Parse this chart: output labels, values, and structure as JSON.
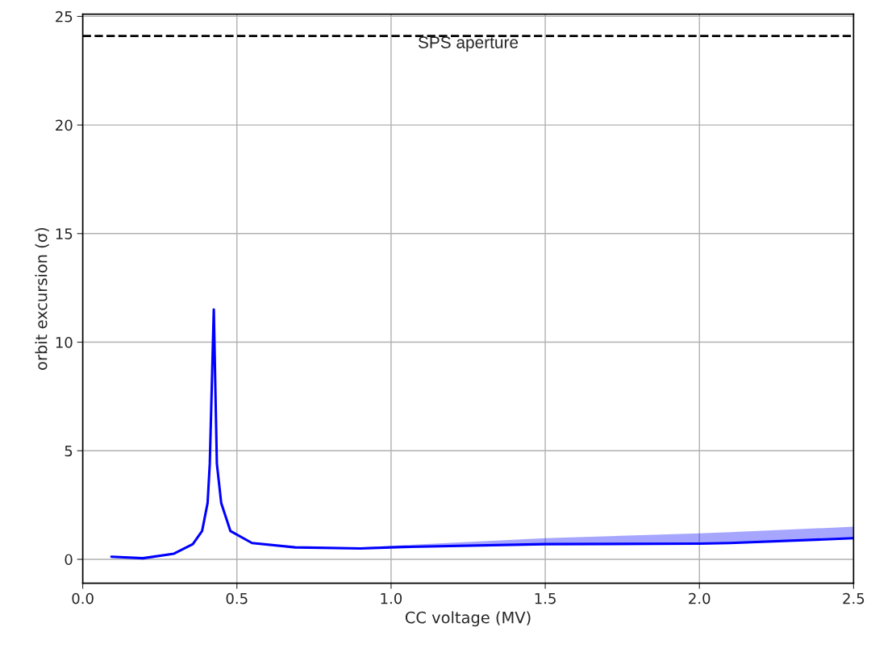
{
  "chart_data": {
    "type": "line",
    "xlabel": "CC voltage (MV)",
    "ylabel": "orbit excursion (σ)",
    "xlim": [
      0,
      2.5
    ],
    "ylim": [
      -1.1,
      25.1
    ],
    "xticks": [
      {
        "value": 0,
        "label": "0.0"
      },
      {
        "value": 0.5,
        "label": "0.5"
      },
      {
        "value": 1,
        "label": "1.0"
      },
      {
        "value": 1.5,
        "label": "1.5"
      },
      {
        "value": 2,
        "label": "2.0"
      },
      {
        "value": 2.5,
        "label": "2.5"
      }
    ],
    "yticks": [
      0,
      5,
      10,
      15,
      20,
      25
    ],
    "grid": true,
    "line_style": "solid",
    "x": [
      0.093,
      0.195,
      0.296,
      0.357,
      0.387,
      0.405,
      0.412,
      0.425,
      0.435,
      0.449,
      0.479,
      0.549,
      0.689,
      0.9,
      1.04,
      1.5,
      2.0,
      2.1,
      2.5
    ],
    "series": [
      {
        "color": "#0000ff",
        "values": [
          0.12,
          0.05,
          0.26,
          0.7,
          1.3,
          2.6,
          4.4,
          11.5,
          4.4,
          2.6,
          1.3,
          0.75,
          0.55,
          0.5,
          0.57,
          0.7,
          0.72,
          0.75,
          0.97
        ],
        "lower": [
          0.12,
          0.05,
          0.26,
          0.7,
          1.3,
          2.6,
          4.4,
          11.5,
          4.4,
          2.6,
          1.3,
          0.75,
          0.55,
          0.5,
          0.57,
          0.7,
          0.72,
          0.75,
          0.97
        ],
        "upper": [
          0.12,
          0.05,
          0.26,
          0.7,
          1.3,
          2.6,
          4.4,
          11.5,
          4.4,
          2.6,
          1.3,
          0.75,
          0.55,
          0.55,
          0.65,
          0.97,
          1.2,
          1.25,
          1.5
        ]
      }
    ],
    "ref_lines": [
      {
        "axis": "y",
        "value": 24.1,
        "label": "SPS aperture",
        "color": "#000000",
        "line_style": "dashed"
      }
    ]
  }
}
